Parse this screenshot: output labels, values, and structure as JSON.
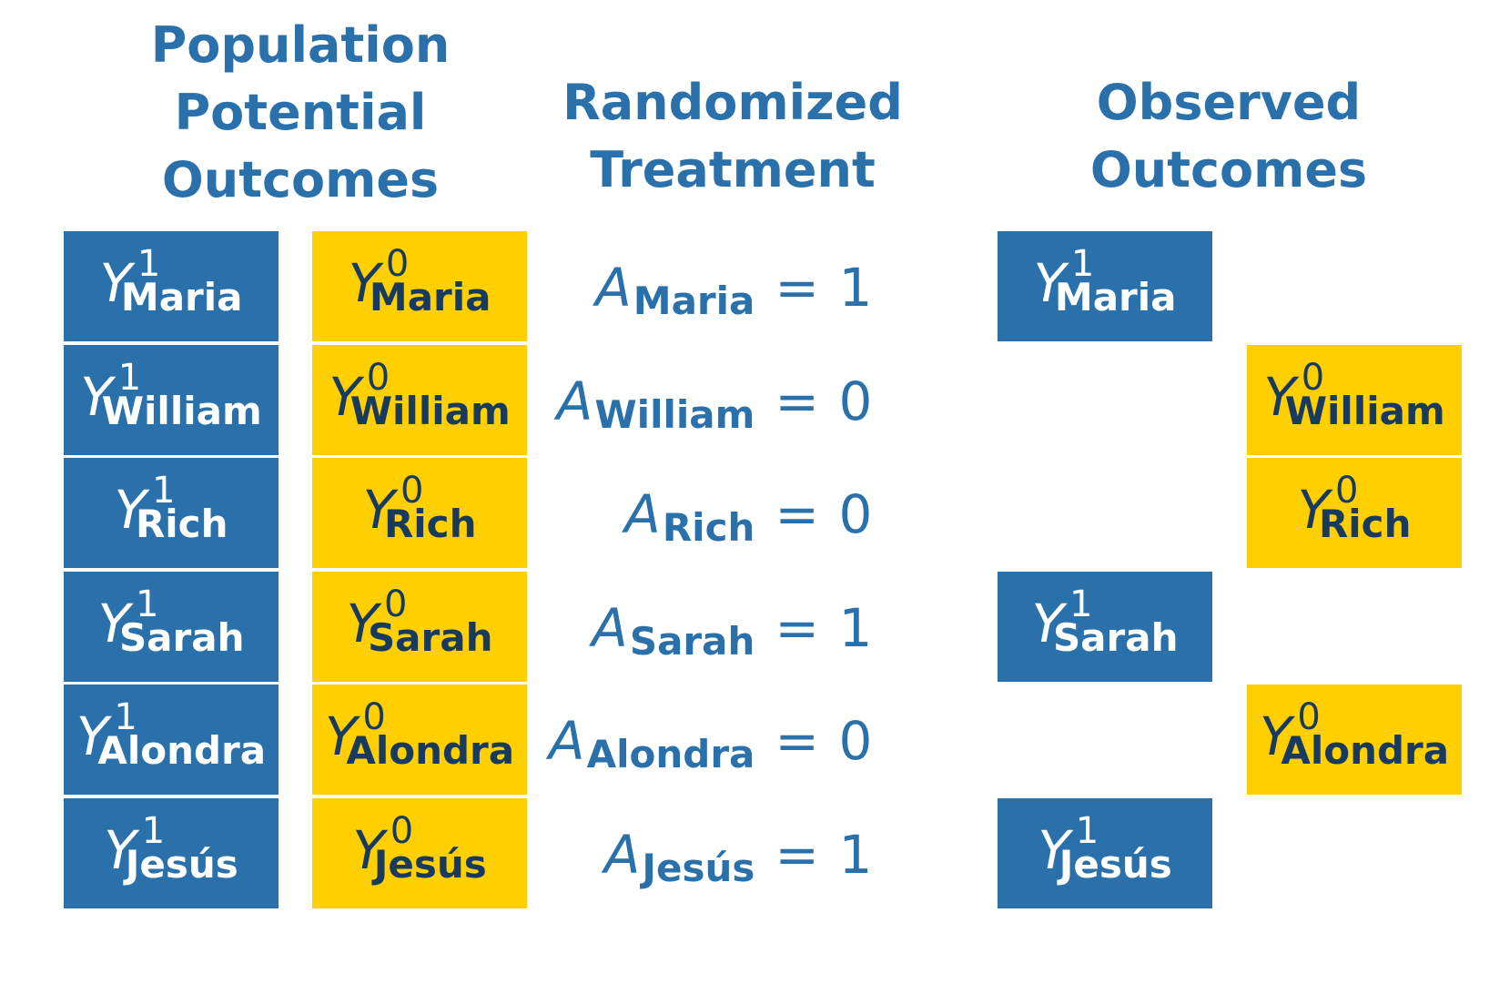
{
  "headings": {
    "population": [
      "Population",
      "Potential",
      "Outcomes"
    ],
    "randomized": [
      "Randomized",
      "Treatment"
    ],
    "observed": [
      "Observed",
      "Outcomes"
    ]
  },
  "symbols": {
    "outcome": "Y",
    "treatment": "A",
    "equals": "=",
    "treated_superscript": "1",
    "control_superscript": "0"
  },
  "people": [
    {
      "name": "Maria",
      "treatment": "1"
    },
    {
      "name": "William",
      "treatment": "0"
    },
    {
      "name": "Rich",
      "treatment": "0"
    },
    {
      "name": "Sarah",
      "treatment": "1"
    },
    {
      "name": "Alondra",
      "treatment": "0"
    },
    {
      "name": "Jesús",
      "treatment": "1"
    }
  ],
  "colors": {
    "treated": "#2a71ab",
    "control": "#ffcf00",
    "control_text": "#173a5e",
    "heading": "#2a71ab"
  }
}
